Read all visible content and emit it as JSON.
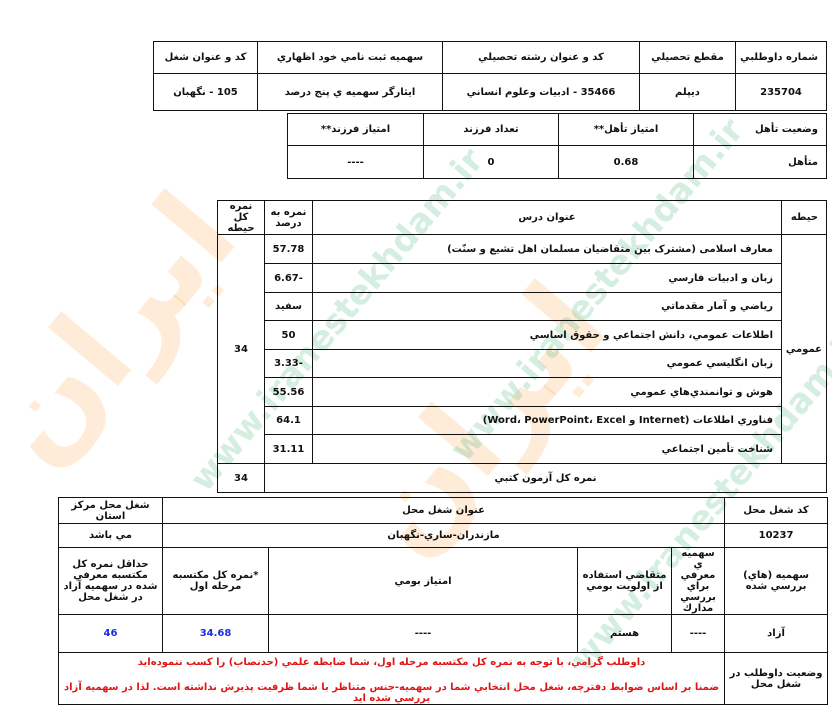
{
  "candidate": {
    "headers": [
      "شماره داوطلبي",
      "مقطع تحصيلي",
      "كد و عنوان رشته تحصيلي",
      "سهميه ثبت نامي خود اظهاري",
      "كد و عنوان شغل"
    ],
    "values": [
      "235704",
      "ديپلم",
      "35466 - ادبيات وعلوم انساني",
      "ايثارگر سهميه ي پنج درصد",
      "105 - نگهبان"
    ]
  },
  "marital": {
    "headers": [
      "وضعيت تأهل",
      "امتياز تأهل**",
      "تعداد فرزند",
      "امتياز فرزند**"
    ],
    "values": [
      "متأهل",
      "0.68",
      "0",
      "----"
    ]
  },
  "scores": {
    "headers": {
      "domain": "حيطه",
      "course": "عنوان درس",
      "percent": "نمره به درصد",
      "domain_total": "نمره كل حيطه"
    },
    "domain": "عمومي",
    "domain_total": "34",
    "rows": [
      {
        "course": "معارف اسلامی (مشترک بین متقاضیان مسلمان اهل تشیع و سنّت)",
        "percent": "57.78"
      },
      {
        "course": "زبان و ادبيات فارسي",
        "percent": "-6.67"
      },
      {
        "course": "رياضي و آمار مقدماتي",
        "percent": "سفيد"
      },
      {
        "course": "اطلاعات عمومي، دانش اجتماعي و حقوق اساسي",
        "percent": "50"
      },
      {
        "course": "زبان انگليسي عمومي",
        "percent": "-3.33"
      },
      {
        "course": "هوش و توانمندي‌هاي عمومي",
        "percent": "55.56"
      },
      {
        "course": "فناوري اطلاعات (Internet و Word، PowerPoint، Excel)",
        "percent": "64.1"
      },
      {
        "course": "شناخت تأمين اجتماعي",
        "percent": "31.11"
      }
    ],
    "total_label": "نمره كل آزمون كتبي",
    "total": "34"
  },
  "job": {
    "headers": [
      "كد شغل محل",
      "عنوان شغل محل",
      "شغل محل مركز استان"
    ],
    "values": [
      "10237",
      "مازندران-ساري-نگهبان",
      "مي باشد"
    ],
    "quota_headers": [
      "سهميه (هاي) بررسي شده",
      "سهميه ي معرفي براي بررسي مدارك",
      "متقاضي استفاده از اولويت بومي",
      "امتياز بومي",
      "*نمره كل مكتسبه مرحله اول",
      "حداقل نمره كل مكتسبه معرفي شده در سهميه آزاد در شغل محل"
    ],
    "quota_values": [
      "آزاد",
      "----",
      "هستم",
      "----",
      "34.68",
      "46"
    ],
    "status_label": "وضعيت داوطلب در شغل محل",
    "status_line1": "داوطلب گرامي، با توجه به نمره كل مكتسبه مرحله اول، شما ضابطه علمي (حدنصاب) را كسب ننموده‌ايد",
    "status_line2": "ضمنا بر اساس ضوابط دفترچه، شغل محل انتخابي شما در سهميه-جنس متناظر با شما ظرفيت پذيرش نداشته است. لذا در سهميه آزاد بررسي شده ايد"
  },
  "colors": {
    "value_blue": "#1a2fe0",
    "status_red": "#e01515"
  },
  "watermark": "www.iranestekhdam.ir"
}
